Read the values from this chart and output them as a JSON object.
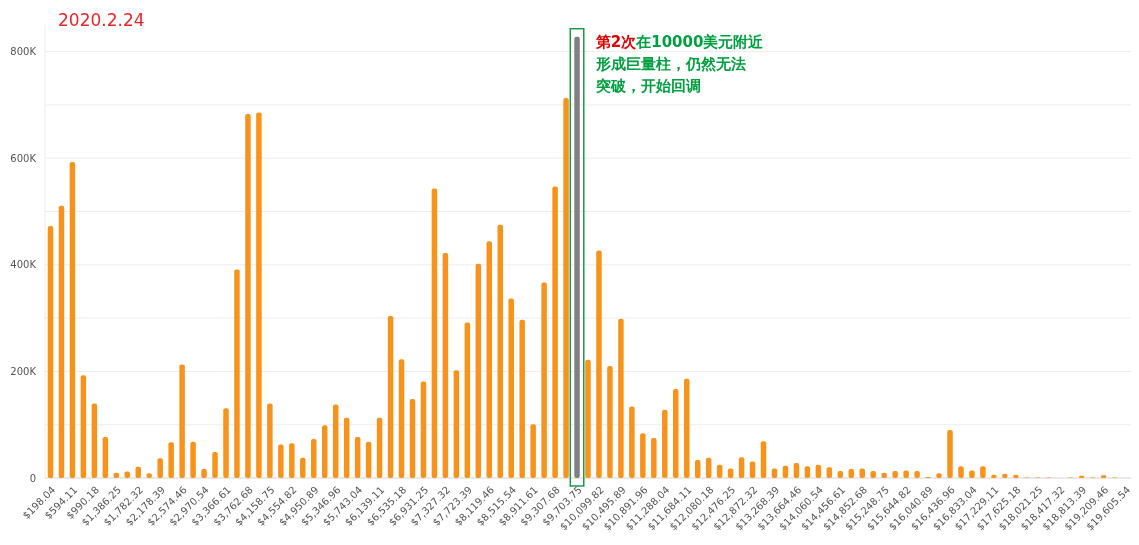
{
  "chart_data": {
    "type": "bar",
    "title": "2020.2.24",
    "categories": [
      "$198.04",
      null,
      "$594.11",
      null,
      "$990.18",
      null,
      "$1,386.25",
      null,
      "$1,782.32",
      null,
      "$2,178.39",
      null,
      "$2,574.46",
      null,
      "$2,970.54",
      null,
      "$3,366.61",
      null,
      "$3,762.68",
      null,
      "$4,158.75",
      null,
      "$4,554.82",
      null,
      "$4,950.89",
      null,
      "$5,346.96",
      null,
      "$5,743.04",
      null,
      "$6,139.11",
      null,
      "$6,535.18",
      null,
      "$6,931.25",
      null,
      "$7,327.32",
      null,
      "$7,723.39",
      null,
      "$8,119.46",
      null,
      "$8,515.54",
      null,
      "$8,911.61",
      null,
      "$9,307.68",
      null,
      "$9,703.75",
      null,
      "$10,099.82",
      null,
      "$10,495.89",
      null,
      "$10,891.96",
      null,
      "$11,288.04",
      null,
      "$11,684.11",
      null,
      "$12,080.18",
      null,
      "$12,476.25",
      null,
      "$12,872.32",
      null,
      "$13,268.39",
      null,
      "$13,664.46",
      null,
      "$14,060.54",
      null,
      "$14,456.61",
      null,
      "$14,852.68",
      null,
      "$15,248.75",
      null,
      "$15,644.82",
      null,
      "$16,040.89",
      null,
      "$16,436.96",
      null,
      "$16,833.04",
      null,
      "$17,229.11",
      null,
      "$17,625.18",
      null,
      "$18,021.25",
      null,
      "$18,417.32",
      null,
      "$18,813.39",
      null,
      "$19,209.46",
      null,
      "$19,605.54"
    ],
    "values": [
      473000,
      511000,
      593000,
      193000,
      140000,
      77000,
      10000,
      12000,
      21000,
      9000,
      37000,
      67000,
      213000,
      68000,
      17000,
      49000,
      131000,
      391000,
      683000,
      686000,
      140000,
      63000,
      65000,
      38000,
      73000,
      99000,
      138000,
      113000,
      77000,
      68000,
      113000,
      304000,
      223000,
      148000,
      181000,
      543000,
      422000,
      202000,
      292000,
      402000,
      444000,
      475000,
      337000,
      297000,
      101000,
      367000,
      547000,
      713000,
      828000,
      222000,
      427000,
      210000,
      299000,
      134000,
      84000,
      75000,
      128000,
      167000,
      186000,
      34000,
      38000,
      25000,
      18000,
      39000,
      31000,
      69000,
      18000,
      23000,
      28000,
      22000,
      25000,
      20000,
      13000,
      17000,
      18000,
      13000,
      10000,
      13000,
      14000,
      13000,
      2000,
      9000,
      90000,
      22000,
      14000,
      22000,
      6000,
      8000,
      6000,
      1000,
      1000,
      1000,
      0,
      1000,
      4000,
      1000,
      5000,
      1000,
      0
    ],
    "colors": [
      "#f7931a",
      "#f7931a",
      "#f7931a",
      "#f7931a",
      "#f7931a",
      "#f7931a",
      "#f7931a",
      "#f7931a",
      "#f7931a",
      "#f7931a",
      "#f7931a",
      "#f7931a",
      "#f7931a",
      "#f7931a",
      "#f7931a",
      "#f7931a",
      "#f7931a",
      "#f7931a",
      "#f7931a",
      "#f7931a",
      "#f7931a",
      "#f7931a",
      "#f7931a",
      "#f7931a",
      "#f7931a",
      "#f7931a",
      "#f7931a",
      "#f7931a",
      "#f7931a",
      "#f7931a",
      "#f7931a",
      "#f7931a",
      "#f7931a",
      "#f7931a",
      "#f7931a",
      "#f7931a",
      "#f7931a",
      "#f7931a",
      "#f7931a",
      "#f7931a",
      "#f7931a",
      "#f7931a",
      "#f7931a",
      "#f7931a",
      "#f7931a",
      "#f7931a",
      "#f7931a",
      "#f7931a",
      "#808080",
      "#f7931a",
      "#f7931a",
      "#f7931a",
      "#f7931a",
      "#f7931a",
      "#f7931a",
      "#f7931a",
      "#f7931a",
      "#f7931a",
      "#f7931a",
      "#f7931a",
      "#f7931a",
      "#f7931a",
      "#f7931a",
      "#f7931a",
      "#f7931a",
      "#f7931a",
      "#f7931a",
      "#f7931a",
      "#f7931a",
      "#f7931a",
      "#f7931a",
      "#f7931a",
      "#f7931a",
      "#f7931a",
      "#f7931a",
      "#f7931a",
      "#f7931a",
      "#f7931a",
      "#f7931a",
      "#f7931a",
      "#f7931a",
      "#f7931a",
      "#f7931a",
      "#f7931a",
      "#f7931a",
      "#f7931a",
      "#f7931a",
      "#f7931a",
      "#f7931a",
      "#f7931a",
      "#f7931a",
      "#f7931a",
      "#f7931a",
      "#f7931a",
      "#f7931a",
      "#f7931a",
      "#f7931a",
      "#f7931a",
      "#f7931a"
    ],
    "ylim": [
      0,
      850000
    ],
    "yticks": [
      0,
      {
        "value": 100000,
        "label": null
      },
      {
        "value": 200000,
        "label": "200K"
      },
      {
        "value": 300000,
        "label": null
      },
      {
        "value": 400000,
        "label": "400K"
      },
      {
        "value": 500000,
        "label": null
      },
      {
        "value": 600000,
        "label": "600K"
      },
      {
        "value": 700000,
        "label": null
      },
      {
        "value": 800000,
        "label": "800K"
      }
    ],
    "grid": "y",
    "annotations": [
      "第2次",
      "在10000美元附近形成巨量柱，仍然无法突破，开始回调"
    ]
  }
}
